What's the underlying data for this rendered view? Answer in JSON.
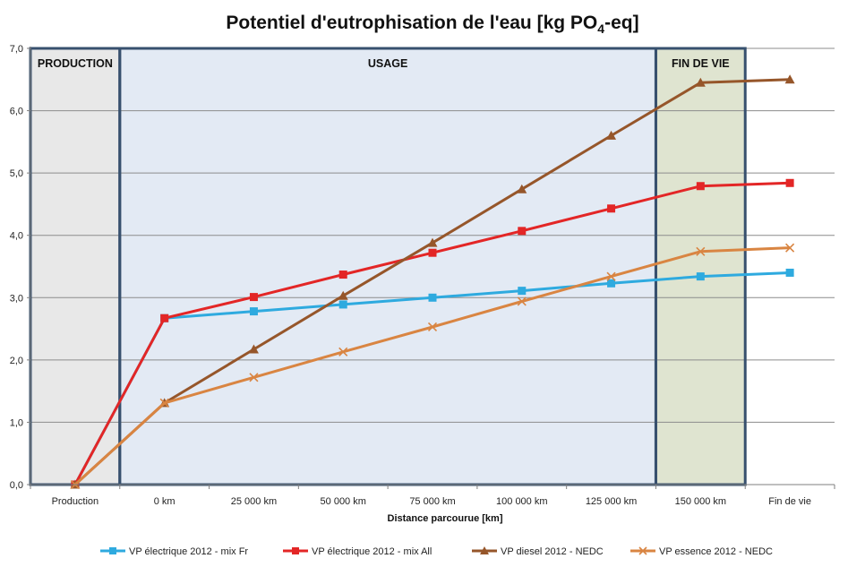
{
  "chart_data": {
    "type": "line",
    "title_main": "Potentiel d'eutrophisation de l'eau [kg PO",
    "title_sub": "4",
    "title_end": "-eq]",
    "xlabel": "Distance parcourue [km]",
    "ylabel": "",
    "ylim": [
      0,
      7
    ],
    "yticks": [
      0,
      1,
      2,
      3,
      4,
      5,
      6,
      7
    ],
    "ytick_labels": [
      "0,0",
      "1,0",
      "2,0",
      "3,0",
      "4,0",
      "5,0",
      "6,0",
      "7,0"
    ],
    "grid": "horizontal",
    "legend_position": "bottom",
    "categories": [
      "Production",
      "0 km",
      "25 000 km",
      "50 000 km",
      "75 000 km",
      "100 000 km",
      "125 000 km",
      "150 000 km",
      "Fin de vie"
    ],
    "phases": [
      {
        "label": "PRODUCTION",
        "from": 0,
        "to": 1,
        "color": "#e8e8e8"
      },
      {
        "label": "USAGE",
        "from": 1,
        "to": 7,
        "color": "#e3eaf4"
      },
      {
        "label": "FIN DE VIE",
        "from": 7,
        "to": 8,
        "color": "#dfe4d0"
      }
    ],
    "series": [
      {
        "name": "VP électrique 2012 - mix Fr",
        "color": "#2eaadf",
        "marker": "square",
        "values": [
          0,
          2.67,
          2.78,
          2.89,
          3.0,
          3.11,
          3.23,
          3.34,
          3.4
        ]
      },
      {
        "name": "VP électrique 2012 - mix All",
        "color": "#e32626",
        "marker": "square",
        "values": [
          0,
          2.67,
          3.01,
          3.37,
          3.72,
          4.07,
          4.43,
          4.79,
          4.84
        ]
      },
      {
        "name": "VP diesel 2012 - NEDC",
        "color": "#96562a",
        "marker": "triangle",
        "values": [
          0,
          1.31,
          2.17,
          3.03,
          3.88,
          4.74,
          5.6,
          6.45,
          6.5
        ]
      },
      {
        "name": "VP essence 2012 - NEDC",
        "color": "#d98542",
        "marker": "x",
        "values": [
          0,
          1.31,
          1.72,
          2.13,
          2.53,
          2.94,
          3.34,
          3.74,
          3.8
        ]
      }
    ]
  }
}
